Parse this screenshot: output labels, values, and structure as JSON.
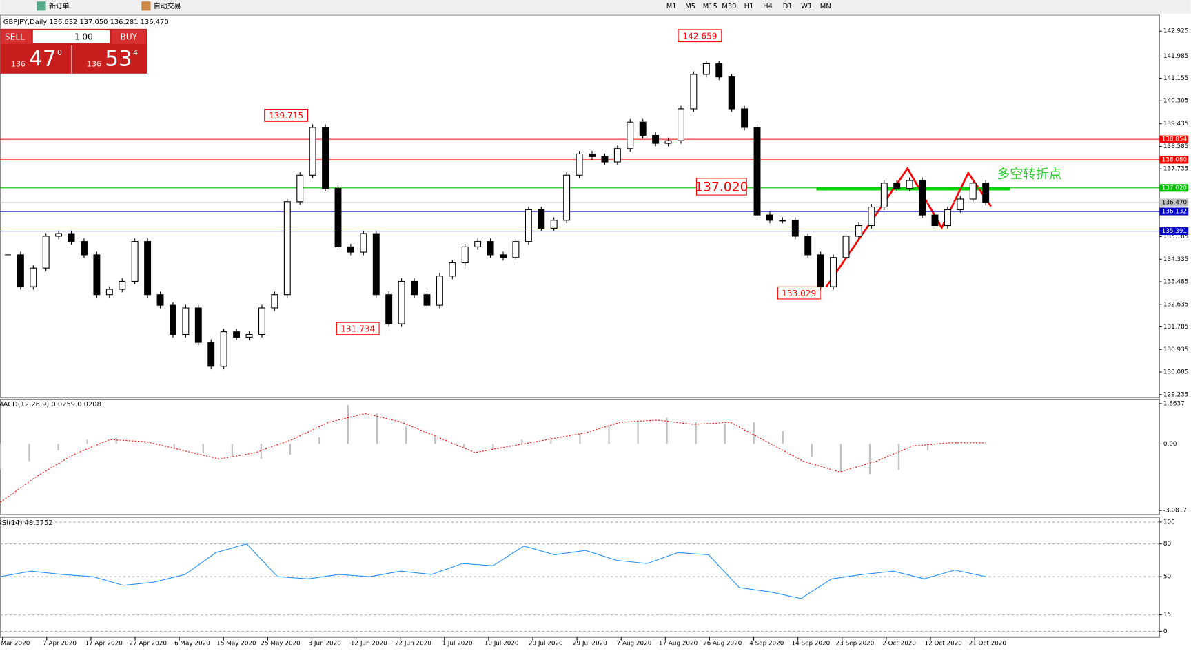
{
  "toolbar": {
    "buttons": [
      "新订单",
      "自动交易"
    ],
    "timeframes": [
      "M1",
      "M5",
      "M15",
      "M30",
      "H1",
      "H4",
      "D1",
      "W1",
      "MN"
    ]
  },
  "trade_panel": {
    "sell": "SELL",
    "buy": "BUY",
    "volume": "1.00",
    "bid_big": "136",
    "bid_pips": "47",
    "bid_sup": "0",
    "ask_big": "136",
    "ask_pips": "53",
    "ask_sup": "4"
  },
  "chart_data": [
    {
      "type": "candlestick",
      "title": "GBPJPY,Daily  136.632 137.050 136.281 136.470",
      "closes": [
        134.5,
        133.3,
        134.0,
        135.2,
        135.3,
        135.0,
        134.5,
        133.0,
        133.2,
        133.5,
        135.0,
        133.0,
        132.6,
        131.5,
        132.5,
        131.2,
        130.3,
        131.6,
        131.4,
        131.5,
        132.5,
        133.0,
        136.5,
        137.5,
        139.3,
        137.0,
        134.8,
        134.6,
        135.3,
        133.0,
        131.9,
        133.5,
        133.0,
        132.6,
        133.7,
        134.2,
        134.8,
        135.0,
        134.5,
        134.4,
        135.0,
        136.2,
        135.5,
        135.8,
        137.5,
        138.3,
        138.2,
        138.0,
        138.5,
        139.5,
        139.0,
        138.7,
        138.8,
        140.0,
        141.3,
        141.7,
        141.2,
        140.0,
        139.3,
        136.0,
        135.8,
        135.8,
        135.2,
        134.5,
        133.3,
        134.4,
        135.2,
        135.6,
        136.3,
        137.2,
        137.0,
        137.3,
        136.0,
        135.6,
        136.2,
        136.6,
        137.2,
        136.47
      ],
      "x_labels": [
        "Mar 2020",
        "7 Apr 2020",
        "17 Apr 2020",
        "27 Apr 2020",
        "6 May 2020",
        "15 May 2020",
        "25 May 2020",
        "3 Jun 2020",
        "12 Jun 2020",
        "22 Jun 2020",
        "1 Jul 2020",
        "10 Jul 2020",
        "20 Jul 2020",
        "29 Jul 2020",
        "7 Aug 2020",
        "17 Aug 2020",
        "26 Aug 2020",
        "4 Sep 2020",
        "14 Sep 2020",
        "23 Sep 2020",
        "2 Oct 2020",
        "12 Oct 2020",
        "21 Oct 2020"
      ],
      "ylim": [
        129.15,
        143.47
      ],
      "yticks": [
        142.925,
        141.985,
        141.155,
        140.305,
        139.435,
        138.585,
        137.735,
        135.185,
        134.335,
        133.485,
        132.635,
        131.785,
        130.935,
        130.085,
        129.235
      ],
      "levels": [
        {
          "value": 138.854,
          "label": "138.854",
          "color": "#ff0000"
        },
        {
          "value": 138.08,
          "label": "138.080",
          "color": "#ff0000"
        },
        {
          "value": 137.02,
          "label": "137.020",
          "color": "#00c000"
        },
        {
          "value": 136.47,
          "label": "136.470",
          "color": "#c0c0c0"
        },
        {
          "value": 136.132,
          "label": "136.132",
          "color": "#0000c8"
        },
        {
          "value": 135.391,
          "label": "135.391",
          "color": "#0000c8"
        }
      ],
      "annotations": [
        "142.659",
        "139.715",
        "131.734",
        "133.029",
        "137.020",
        "多空转折点"
      ]
    },
    {
      "type": "macd",
      "title": "MACD(12,26,9) 0.0259 0.0208",
      "histogram": [
        -1.2,
        -0.8,
        -0.3,
        0.2,
        0.3,
        0.1,
        -0.2,
        -0.4,
        -0.6,
        -0.7,
        -0.5,
        0.3,
        1.8,
        1.4,
        0.8,
        0.3,
        -0.2,
        -0.3,
        0.2,
        0.3,
        0.5,
        0.8,
        1.1,
        1.2,
        1.0,
        0.9,
        1.0,
        0.6,
        -0.6,
        -1.3,
        -1.4,
        -1.2,
        -0.3,
        0.1,
        0.0
      ],
      "signal": [
        -2.7,
        -1.5,
        -0.5,
        0.2,
        0.1,
        -0.3,
        -0.7,
        -0.4,
        0.2,
        1.0,
        1.4,
        1.0,
        0.3,
        -0.4,
        -0.1,
        0.2,
        0.5,
        1.0,
        1.1,
        0.9,
        1.0,
        0.1,
        -0.8,
        -1.3,
        -0.8,
        -0.1,
        0.05,
        0.05
      ],
      "ylim": [
        -3.26,
        2.07
      ],
      "yticks": [
        1.8637,
        {
          "value": 0,
          "label": "0.00"
        },
        -3.0817
      ]
    },
    {
      "type": "rsi",
      "title": "RSI(14) 48.3752",
      "values": [
        50,
        55,
        52,
        50,
        42,
        45,
        52,
        72,
        80,
        50,
        48,
        52,
        50,
        55,
        52,
        62,
        60,
        78,
        70,
        74,
        65,
        62,
        72,
        70,
        40,
        36,
        30,
        48,
        52,
        55,
        48,
        56,
        50
      ],
      "ylim": [
        -5.6,
        104.2
      ],
      "yticks": [
        100,
        80,
        50,
        15,
        0
      ]
    }
  ]
}
